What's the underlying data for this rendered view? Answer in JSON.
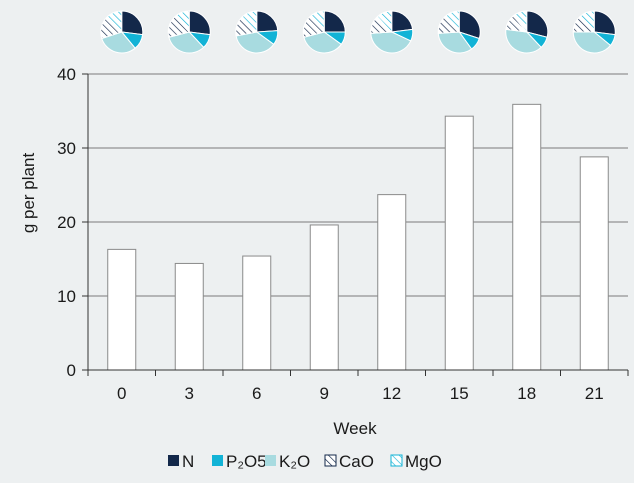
{
  "chart_data": {
    "type": "bar",
    "categories": [
      "0",
      "3",
      "6",
      "9",
      "12",
      "15",
      "18",
      "21"
    ],
    "values": [
      16.3,
      14.4,
      15.4,
      19.6,
      23.7,
      34.3,
      35.9,
      28.8
    ],
    "xlabel": "Week",
    "ylabel": "g per plant",
    "ylim": [
      0,
      40
    ],
    "yticks": [
      "0",
      "10",
      "20",
      "30",
      "40"
    ],
    "grid": true,
    "bar_color": "#ffffff",
    "legend": {
      "placement": "bottom",
      "entries": [
        {
          "label": "N",
          "color": "#13284a",
          "pattern": "solid"
        },
        {
          "label": "P₂O5",
          "color": "#12b3d6",
          "pattern": "solid"
        },
        {
          "label": "K₂O",
          "color": "#a8dbe0",
          "pattern": "solid"
        },
        {
          "label": "CaO",
          "color": "#13284a",
          "pattern": "hatch"
        },
        {
          "label": "MgO",
          "color": "#12b3d6",
          "pattern": "hatch"
        }
      ]
    },
    "pies": [
      {
        "week": "0",
        "shares": {
          "N": 27,
          "P₂O5": 12,
          "K₂O": 31,
          "CaO": 18,
          "MgO": 12
        }
      },
      {
        "week": "3",
        "shares": {
          "N": 27,
          "P₂O5": 11,
          "K₂O": 33,
          "CaO": 17,
          "MgO": 12
        }
      },
      {
        "week": "6",
        "shares": {
          "N": 24,
          "P₂O5": 11,
          "K₂O": 37,
          "CaO": 16,
          "MgO": 12
        }
      },
      {
        "week": "9",
        "shares": {
          "N": 25,
          "P₂O5": 10,
          "K₂O": 36,
          "CaO": 17,
          "MgO": 12
        }
      },
      {
        "week": "12",
        "shares": {
          "N": 23,
          "P₂O5": 9,
          "K₂O": 42,
          "CaO": 14,
          "MgO": 12
        }
      },
      {
        "week": "15",
        "shares": {
          "N": 30,
          "P₂O5": 10,
          "K₂O": 34,
          "CaO": 14,
          "MgO": 12
        }
      },
      {
        "week": "18",
        "shares": {
          "N": 29,
          "P₂O5": 9,
          "K₂O": 39,
          "CaO": 12,
          "MgO": 11
        }
      },
      {
        "week": "21",
        "shares": {
          "N": 27,
          "P₂O5": 9,
          "K₂O": 39,
          "CaO": 13,
          "MgO": 12
        }
      }
    ]
  }
}
